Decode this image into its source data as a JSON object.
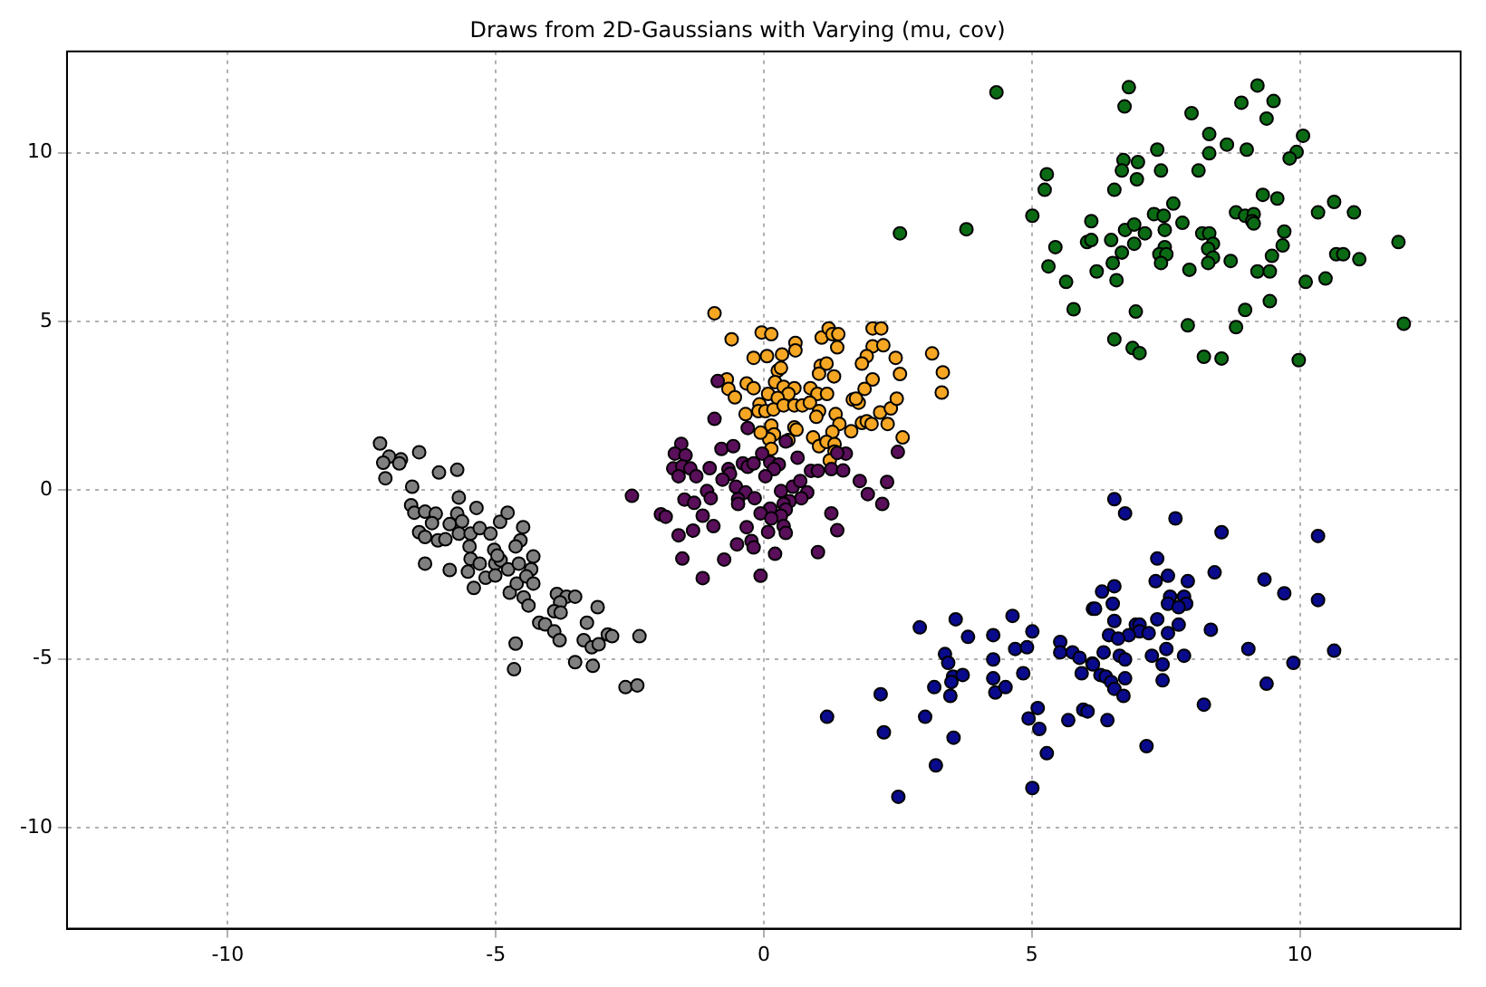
{
  "chart_data": {
    "type": "scatter",
    "title": "Draws from 2D-Gaussians with Varying (mu, cov)",
    "xlim": [
      -13,
      13
    ],
    "ylim": [
      -13,
      13
    ],
    "xticks": [
      -10,
      -5,
      0,
      5,
      10
    ],
    "yticks": [
      -10,
      -5,
      0,
      5,
      10
    ],
    "grid": true,
    "legend": false,
    "marker": "circle",
    "series": [
      {
        "color": "#808080",
        "x": [
          -7.16,
          -6.99,
          -7.1,
          -6.77,
          -6.8,
          -6.43,
          -7.06,
          -6.06,
          -5.72,
          -6.56,
          -5.69,
          -6.58,
          -6.52,
          -6.32,
          -6.12,
          -5.36,
          -5.72,
          -6.19,
          -6.43,
          -6.32,
          -5.86,
          -5.63,
          -5.69,
          -5.47,
          -5.3,
          -5.1,
          -4.92,
          -4.78,
          -4.49,
          -6.08,
          -5.94,
          -5.49,
          -5.03,
          -4.54,
          -4.63,
          -6.32,
          -5.86,
          -5.47,
          -5.3,
          -5.52,
          -5.01,
          -4.91,
          -4.97,
          -4.77,
          -4.57,
          -4.3,
          -4.34,
          -5.19,
          -5.01,
          -5.41,
          -4.74,
          -4.61,
          -4.43,
          -4.3,
          -4.48,
          -4.39,
          -3.86,
          -3.68,
          -3.52,
          -3.8,
          -3.91,
          -3.79,
          -3.1,
          -4.19,
          -4.08,
          -3.91,
          -3.3,
          -3.81,
          -3.36,
          -3.21,
          -3.08,
          -2.91,
          -2.83,
          -2.32,
          -4.63,
          -4.66,
          -3.52,
          -3.19,
          -2.58,
          -2.36
        ],
        "values": [
          1.38,
          0.99,
          0.81,
          0.91,
          0.79,
          1.12,
          0.35,
          0.52,
          0.6,
          0.1,
          -0.22,
          -0.45,
          -0.67,
          -0.64,
          -0.7,
          -0.53,
          -0.7,
          -0.98,
          -1.25,
          -1.39,
          -1.01,
          -0.93,
          -1.29,
          -1.29,
          -1.13,
          -1.29,
          -0.94,
          -0.67,
          -1.1,
          -1.49,
          -1.46,
          -1.67,
          -1.77,
          -1.49,
          -1.67,
          -2.18,
          -2.37,
          -2.04,
          -2.18,
          -2.42,
          -2.18,
          -2.08,
          -1.94,
          -2.35,
          -2.18,
          -1.97,
          -2.35,
          -2.6,
          -2.53,
          -2.9,
          -3.04,
          -2.77,
          -2.56,
          -2.77,
          -3.18,
          -3.42,
          -3.08,
          -3.16,
          -3.16,
          -3.33,
          -3.59,
          -3.63,
          -3.47,
          -3.93,
          -3.98,
          -4.19,
          -3.93,
          -4.45,
          -4.45,
          -4.66,
          -4.57,
          -4.28,
          -4.33,
          -4.33,
          -4.55,
          -5.31,
          -5.1,
          -5.21,
          -5.84,
          -5.79
        ]
      },
      {
        "color": "#5a0f5a",
        "x": [
          -0.86,
          -0.92,
          -0.3,
          -1.54,
          -1.66,
          -1.46,
          -1.69,
          -1.52,
          -1.37,
          -1.59,
          -1.26,
          -1.01,
          -0.79,
          -0.57,
          -0.66,
          -0.63,
          -0.39,
          -0.3,
          -0.19,
          -0.03,
          0.12,
          0.28,
          0.19,
          0.41,
          0.63,
          0.03,
          -0.77,
          -0.52,
          -0.34,
          -1.06,
          -0.99,
          -1.48,
          -1.3,
          -1.92,
          -1.83,
          -1.14,
          -0.48,
          -0.48,
          -0.17,
          0.32,
          0.54,
          0.68,
          0.88,
          1.01,
          0.81,
          0.7,
          0.48,
          0.37,
          0.41,
          0.32,
          0.12,
          -0.06,
          0.14,
          1.26,
          1.48,
          1.53,
          1.37,
          1.79,
          2.3,
          1.94,
          2.21,
          2.5,
          1.26,
          1.37,
          -0.32,
          0.08,
          0.37,
          0.41,
          -0.23,
          -0.19,
          -0.5,
          -0.94,
          -1.32,
          -1.59,
          -1.52,
          -0.74,
          -1.14,
          -0.06,
          0.21,
          1.01,
          -2.46
        ],
        "values": [
          3.23,
          2.11,
          1.84,
          1.37,
          1.08,
          1.03,
          0.64,
          0.7,
          0.64,
          0.41,
          0.41,
          0.65,
          1.22,
          1.3,
          0.62,
          0.48,
          0.79,
          0.69,
          0.79,
          1.08,
          0.82,
          0.76,
          0.62,
          1.44,
          0.96,
          0.41,
          0.31,
          0.1,
          -0.07,
          -0.03,
          -0.24,
          -0.28,
          -0.38,
          -0.72,
          -0.79,
          -0.76,
          -0.27,
          -0.41,
          -0.24,
          -0.03,
          0.1,
          0.27,
          0.57,
          0.57,
          -0.07,
          -0.24,
          -0.33,
          -0.41,
          -0.58,
          -0.76,
          -0.55,
          -0.69,
          -0.84,
          0.62,
          0.58,
          1.08,
          1.1,
          0.27,
          0.24,
          -0.12,
          -0.41,
          1.13,
          -0.69,
          -1.19,
          -1.1,
          -1.24,
          -1.07,
          -1.27,
          -1.51,
          -1.7,
          -1.61,
          -1.07,
          -1.2,
          -1.34,
          -2.03,
          -2.06,
          -2.61,
          -2.54,
          -1.89,
          -1.84,
          -0.17
        ]
      },
      {
        "color": "#f5a623",
        "x": [
          -0.92,
          -0.6,
          -0.04,
          0.14,
          0.59,
          0.59,
          -0.19,
          0.06,
          0.34,
          1.08,
          1.21,
          1.28,
          1.39,
          1.37,
          1.06,
          1.17,
          1.03,
          1.31,
          2.03,
          2.19,
          2.03,
          2.23,
          1.92,
          1.83,
          2.46,
          2.54,
          2.03,
          1.88,
          3.14,
          3.34,
          3.32,
          -0.69,
          -0.66,
          -0.54,
          -0.32,
          -0.19,
          0.26,
          0.32,
          0.21,
          0.08,
          0.37,
          0.57,
          0.46,
          0.26,
          -0.08,
          -0.1,
          0.03,
          -0.34,
          0.18,
          0.37,
          0.57,
          0.72,
          0.87,
          1.0,
          1.18,
          0.86,
          1.03,
          0.98,
          1.34,
          1.41,
          1.66,
          1.77,
          1.72,
          1.83,
          1.92,
          2.01,
          2.17,
          2.37,
          2.48,
          2.31,
          2.59,
          1.63,
          1.28,
          0.92,
          1.03,
          1.17,
          1.32,
          1.32,
          1.23,
          0.14,
          0.19,
          0.1,
          0.57,
          0.46,
          0.61,
          0.14,
          -0.06
        ],
        "values": [
          5.24,
          4.47,
          4.67,
          4.62,
          4.36,
          4.14,
          3.92,
          3.97,
          4.02,
          4.52,
          4.79,
          4.62,
          4.62,
          4.23,
          3.68,
          3.75,
          3.45,
          3.37,
          4.79,
          4.79,
          4.26,
          4.29,
          3.97,
          3.75,
          3.92,
          3.44,
          3.28,
          3.0,
          4.05,
          3.49,
          2.89,
          3.28,
          3.0,
          2.75,
          3.16,
          3.02,
          3.54,
          3.62,
          3.2,
          2.85,
          3.06,
          3.02,
          2.85,
          2.73,
          2.54,
          2.34,
          2.34,
          2.25,
          2.39,
          2.51,
          2.51,
          2.51,
          3.02,
          2.85,
          2.85,
          2.59,
          2.34,
          2.17,
          2.25,
          1.96,
          2.68,
          2.59,
          2.71,
          1.99,
          2.04,
          1.96,
          2.3,
          2.42,
          2.71,
          1.96,
          1.56,
          1.74,
          1.72,
          1.56,
          1.3,
          1.43,
          1.36,
          1.14,
          0.88,
          1.91,
          1.65,
          1.51,
          1.86,
          1.48,
          1.79,
          1.22,
          1.7
        ]
      },
      {
        "color": "#0b6b14",
        "x": [
          4.34,
          6.81,
          6.73,
          6.71,
          6.98,
          6.68,
          6.96,
          5.28,
          5.24,
          6.54,
          5.01,
          2.54,
          3.78,
          6.11,
          6.74,
          6.91,
          7.11,
          5.44,
          6.03,
          6.11,
          6.48,
          6.91,
          6.68,
          6.51,
          5.31,
          6.21,
          6.58,
          5.64,
          5.78,
          6.94,
          6.54,
          6.88,
          7.01,
          9.21,
          8.91,
          9.51,
          9.38,
          7.98,
          8.31,
          8.64,
          9.01,
          8.31,
          7.34,
          10.06,
          9.94,
          9.81,
          7.41,
          8.11,
          9.31,
          9.58,
          7.64,
          7.28,
          7.46,
          8.81,
          8.98,
          9.14,
          9.11,
          9.14,
          7.81,
          7.48,
          8.18,
          8.31,
          9.71,
          8.38,
          7.48,
          8.29,
          7.38,
          7.51,
          8.38,
          8.29,
          7.41,
          8.71,
          9.68,
          9.48,
          7.94,
          9.21,
          9.44,
          10.34,
          10.64,
          11.01,
          11.84,
          10.68,
          10.81,
          11.11,
          10.11,
          10.48,
          9.44,
          8.98,
          8.81,
          7.91,
          11.94,
          8.21,
          8.54,
          9.98
        ],
        "values": [
          11.79,
          11.94,
          11.37,
          9.78,
          9.72,
          9.47,
          9.21,
          9.36,
          8.9,
          8.9,
          8.13,
          7.61,
          7.73,
          7.97,
          7.71,
          7.87,
          7.61,
          7.2,
          7.35,
          7.41,
          7.41,
          7.3,
          7.04,
          6.73,
          6.63,
          6.48,
          6.22,
          6.17,
          5.36,
          5.29,
          4.47,
          4.21,
          4.06,
          11.99,
          11.48,
          11.53,
          11.01,
          11.17,
          10.55,
          10.24,
          10.09,
          9.98,
          10.09,
          10.5,
          10.02,
          9.83,
          9.47,
          9.47,
          8.75,
          8.64,
          8.49,
          8.18,
          8.13,
          8.23,
          8.13,
          8.18,
          7.97,
          7.9,
          7.92,
          7.71,
          7.61,
          7.61,
          7.66,
          7.3,
          7.2,
          7.15,
          6.99,
          6.99,
          6.89,
          6.73,
          6.73,
          6.79,
          7.25,
          6.94,
          6.53,
          6.48,
          6.48,
          8.23,
          8.54,
          8.23,
          7.35,
          6.99,
          6.99,
          6.84,
          6.17,
          6.27,
          5.6,
          5.34,
          4.83,
          4.88,
          4.93,
          3.95,
          3.9,
          3.85
        ]
      },
      {
        "color": "#0a0a8c",
        "x": [
          4.64,
          2.91,
          3.58,
          3.81,
          4.28,
          5.01,
          4.69,
          4.91,
          3.38,
          3.44,
          4.28,
          4.84,
          5.53,
          5.53,
          5.76,
          5.89,
          6.13,
          6.14,
          5.93,
          3.53,
          3.71,
          3.5,
          4.28,
          4.32,
          4.51,
          3.18,
          3.48,
          2.18,
          1.18,
          3.01,
          4.94,
          5.11,
          5.14,
          5.68,
          5.96,
          6.04,
          2.24,
          3.54,
          5.28,
          3.21,
          5.01,
          2.51,
          6.54,
          6.74,
          7.68,
          8.54,
          10.34,
          7.34,
          7.31,
          7.54,
          7.91,
          8.41,
          9.34,
          9.71,
          10.34,
          6.31,
          6.54,
          6.18,
          6.51,
          7.58,
          7.54,
          7.84,
          7.88,
          7.74,
          6.54,
          6.94,
          7.01,
          7.01,
          7.18,
          7.34,
          7.74,
          7.54,
          6.81,
          6.44,
          6.61,
          8.34,
          9.04,
          10.64,
          9.88,
          6.34,
          6.64,
          6.74,
          7.24,
          7.51,
          7.84,
          7.44,
          6.14,
          6.28,
          6.38,
          6.48,
          6.54,
          6.74,
          6.71,
          7.44,
          9.38,
          6.41,
          8.21,
          7.14
        ],
        "values": [
          -3.73,
          -4.07,
          -3.83,
          -4.35,
          -4.3,
          -4.19,
          -4.71,
          -4.66,
          -4.86,
          -5.12,
          -5.02,
          -5.43,
          -4.5,
          -4.81,
          -4.81,
          -4.97,
          -5.14,
          -3.52,
          -5.43,
          -5.53,
          -5.48,
          -5.69,
          -5.58,
          -6.0,
          -5.84,
          -5.84,
          -6.1,
          -6.05,
          -6.72,
          -6.72,
          -6.77,
          -6.46,
          -7.08,
          -6.82,
          -6.51,
          -6.56,
          -7.18,
          -7.34,
          -7.8,
          -8.16,
          -8.83,
          -9.09,
          -0.27,
          -0.69,
          -0.84,
          -1.25,
          -1.36,
          -2.03,
          -2.7,
          -2.54,
          -2.7,
          -2.44,
          -2.65,
          -3.06,
          -3.26,
          -3.01,
          -2.85,
          -3.52,
          -3.37,
          -3.16,
          -3.37,
          -3.16,
          -3.37,
          -3.47,
          -3.88,
          -3.99,
          -3.99,
          -4.19,
          -4.24,
          -3.83,
          -3.99,
          -4.24,
          -4.3,
          -4.3,
          -4.4,
          -4.14,
          -4.71,
          -4.76,
          -5.12,
          -4.81,
          -4.91,
          -5.02,
          -4.91,
          -4.71,
          -4.91,
          -5.17,
          -5.17,
          -5.48,
          -5.53,
          -5.69,
          -5.89,
          -5.58,
          -6.1,
          -5.64,
          -5.74,
          -6.82,
          -6.36,
          -7.59
        ]
      }
    ]
  }
}
